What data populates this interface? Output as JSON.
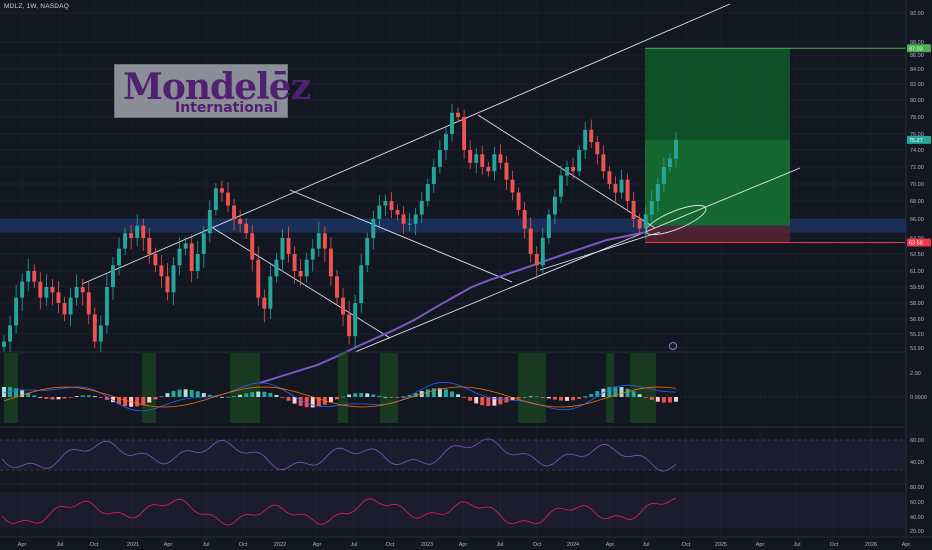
{
  "header": {
    "ticker": "MDLZ, 1W, NASDAQ"
  },
  "logo": {
    "line1": "Mondelēz",
    "line2": "International"
  },
  "chart_data": {
    "type": "candlestick",
    "symbol": "MDLZ",
    "interval": "1W",
    "exchange": "NASDAQ",
    "y_ticks": [
      "92.00",
      "88.00",
      "86.00",
      "84.00",
      "82.00",
      "80.00",
      "78.00",
      "76.00",
      "74.00",
      "72.00",
      "70.00",
      "68.00",
      "66.00",
      "64.00",
      "62.50",
      "61.00",
      "59.50",
      "58.00",
      "56.60",
      "55.20",
      "53.90"
    ],
    "x_ticks": [
      "Apr",
      "Jul",
      "Oct",
      "2021",
      "Apr",
      "Jul",
      "Oct",
      "2022",
      "Apr",
      "Jul",
      "Oct",
      "2023",
      "Apr",
      "Jul",
      "Oct",
      "2024",
      "Apr",
      "Jul",
      "Oct",
      "2025",
      "Apr",
      "Jul",
      "Oct",
      "2026",
      "Apr"
    ],
    "price_labels": {
      "target": "87.03",
      "current": "75.27",
      "stop": "63.58"
    },
    "targets": {
      "target": 87.03,
      "entry": 65.3,
      "stop": 63.58
    },
    "price_series": [
      54.5,
      56,
      58.5,
      60,
      61,
      60,
      58.5,
      59.5,
      59,
      58,
      57,
      58.5,
      59.5,
      59,
      57,
      54.5,
      56,
      59.5,
      61.5,
      63,
      64.5,
      64,
      65.3,
      64,
      62.5,
      61.5,
      60.5,
      59,
      61.5,
      63,
      63.5,
      61,
      62.5,
      64.5,
      67,
      69.5,
      69,
      67.5,
      66,
      65.5,
      64.5,
      62,
      58.5,
      57.5,
      60.5,
      62,
      64,
      62.5,
      61,
      60.5,
      62,
      63,
      64.5,
      63,
      60.5,
      58.5,
      57,
      55,
      58,
      61.5,
      64,
      66,
      67.5,
      68,
      67,
      66.5,
      65.5,
      65.5,
      66.5,
      68,
      70,
      72,
      74,
      76,
      78.5,
      78,
      74,
      72.5,
      73.5,
      72,
      71.5,
      73.5,
      72.5,
      70.5,
      69,
      67,
      65,
      62.5,
      61.5,
      64,
      66.5,
      68.5,
      71,
      72,
      71.5,
      74,
      76.5,
      75,
      73.5,
      71.5,
      70,
      69,
      70.5,
      68,
      66,
      65,
      66.5,
      68,
      70,
      72,
      73,
      75.27
    ],
    "ma200": [
      51,
      51.5,
      52,
      52.5,
      53.2,
      54,
      54.8,
      55.6,
      56.5,
      57.5,
      58.5,
      59.5,
      60.2,
      60.8,
      61.4,
      62,
      62.6,
      63.2,
      63.8,
      64.2,
      64.6
    ],
    "macd_ticks": [
      "2.00",
      "0.0000"
    ],
    "rsi_ticks": [
      "60.00",
      "40.00"
    ],
    "osc3_ticks": [
      "80.00",
      "60.00",
      "40.00",
      "20.00"
    ]
  }
}
